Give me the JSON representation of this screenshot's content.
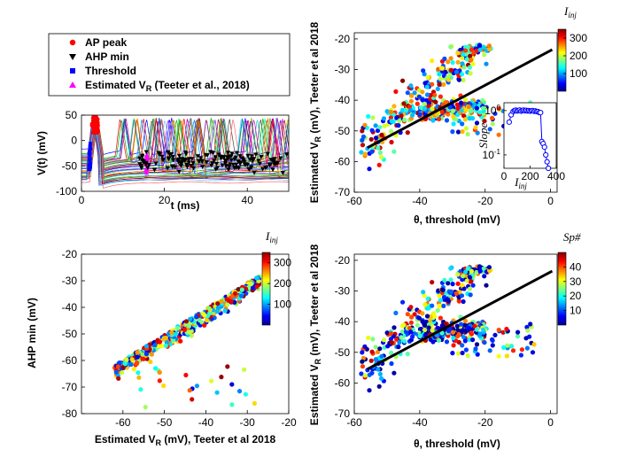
{
  "chart_data": [
    {
      "id": "trace",
      "type": "line",
      "xlabel": "t (ms)",
      "ylabel": "V(t) (mV)",
      "xlim": [
        0,
        50
      ],
      "ylim": [
        -100,
        50
      ],
      "xticks": [
        "0",
        "20",
        "40"
      ],
      "yticks": [
        "50",
        "0",
        "-50",
        "-100"
      ],
      "legend": {
        "placement": "top",
        "entries": [
          {
            "label": "AP peak",
            "marker": "circle",
            "color": "#ff0000"
          },
          {
            "label": "AHP min",
            "marker": "triangle-down",
            "color": "#000000"
          },
          {
            "label": "Threshold",
            "marker": "square",
            "color": "#0000ff"
          },
          {
            "label": "Estimated V",
            "sub": "R",
            "suffix": " (Teeter et al., 2018)",
            "marker": "triangle-up",
            "color": "#ff00ff"
          }
        ]
      },
      "series": [
        {
          "label": "AP peak",
          "x": [
            2.5,
            4
          ],
          "y": [
            15,
            48
          ]
        },
        {
          "label": "AHP min",
          "x": [
            14,
            50
          ],
          "y": [
            -18,
            -85
          ]
        },
        {
          "label": "Threshold",
          "x": [
            1.8,
            2.2
          ],
          "y": [
            -60,
            -5
          ]
        },
        {
          "label": "Estimated V_R",
          "x": [
            15.5,
            16
          ],
          "y": [
            -65,
            -28
          ]
        }
      ]
    },
    {
      "id": "vr_vs_theta_inj",
      "type": "scatter",
      "xlabel": "θ, threshold (mV)",
      "ylabel": "Estimated V",
      "ylabel_sub": "R",
      "ylabel_suffix": " (mV), Teeter et al 2018",
      "xlim": [
        -60,
        2
      ],
      "ylim": [
        -70,
        -18
      ],
      "xticks": [
        "-60",
        "-40",
        "-20",
        "0"
      ],
      "yticks": [
        "-20",
        "-30",
        "-40",
        "-50",
        "-60",
        "-70"
      ],
      "fit_line": {
        "x": [
          -56,
          0.5
        ],
        "y": [
          -55.5,
          -23.5
        ]
      },
      "colorbar": {
        "label": "I",
        "sub": "inj",
        "min": 0,
        "max": 350,
        "ticks": [
          "300",
          "200",
          "100"
        ]
      },
      "inset": {
        "xlabel": "I",
        "xlabel_sub": "inj",
        "ylabel": "Slope",
        "xlim": [
          0,
          400
        ],
        "ylim": [
          0.05,
          1.5
        ],
        "xticks": [
          "0",
          "200",
          "400"
        ],
        "yticks": [
          "10^0",
          "10^-1"
        ],
        "x": [
          40,
          55,
          70,
          80,
          90,
          100,
          110,
          120,
          130,
          140,
          150,
          160,
          170,
          180,
          190,
          200,
          210,
          220,
          230,
          240,
          250,
          260,
          270,
          280,
          290,
          300,
          310,
          320,
          330,
          340
        ],
        "y": [
          0.55,
          0.8,
          0.95,
          1.0,
          1.02,
          0.98,
          1.0,
          1.03,
          0.97,
          1.0,
          1.02,
          0.99,
          1.01,
          0.98,
          1.0,
          0.97,
          0.99,
          1.0,
          0.96,
          0.98,
          0.95,
          0.95,
          0.9,
          0.9,
          0.2,
          0.18,
          0.15,
          0.1,
          0.07,
          0.05
        ]
      }
    },
    {
      "id": "ahp_vs_vr",
      "type": "scatter",
      "xlabel": "Estimated V",
      "xlabel_sub": "R",
      "xlabel_suffix": " (mV), Teeter et al 2018",
      "ylabel": "AHP min (mV)",
      "xlim": [
        -70,
        -20
      ],
      "ylim": [
        -80,
        -20
      ],
      "xticks": [
        "-60",
        "-50",
        "-40",
        "-30",
        "-20"
      ],
      "yticks": [
        "-20",
        "-30",
        "-40",
        "-50",
        "-60",
        "-70",
        "-80"
      ],
      "colorbar": {
        "label": "I",
        "sub": "inj",
        "min": 0,
        "max": 350,
        "ticks": [
          "300",
          "200",
          "100"
        ]
      }
    },
    {
      "id": "vr_vs_theta_sp",
      "type": "scatter",
      "xlabel": "θ, threshold (mV)",
      "ylabel": "Estimated V",
      "ylabel_sub": "R",
      "ylabel_suffix": " (mV), Teeter et al 2018",
      "xlim": [
        -60,
        2
      ],
      "ylim": [
        -70,
        -18
      ],
      "xticks": [
        "-60",
        "-40",
        "-20",
        "0"
      ],
      "yticks": [
        "-20",
        "-30",
        "-40",
        "-50",
        "-60",
        "-70"
      ],
      "fit_line": {
        "x": [
          -56,
          0.5
        ],
        "y": [
          -55.5,
          -23.5
        ]
      },
      "colorbar": {
        "label": "Sp#",
        "min": 0,
        "max": 50,
        "ticks": [
          "40",
          "30",
          "20",
          "10"
        ]
      }
    }
  ]
}
